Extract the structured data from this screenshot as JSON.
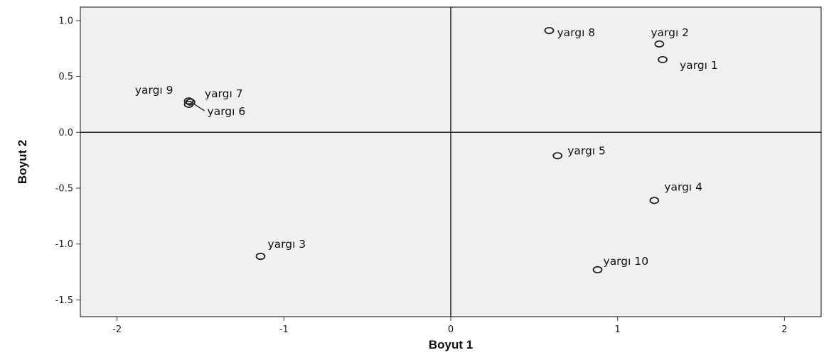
{
  "chart_data": {
    "type": "scatter",
    "xlabel": "Boyut 1",
    "ylabel": "Boyut 2",
    "xlim": [
      -2.22,
      2.22
    ],
    "ylim": [
      -1.65,
      1.12
    ],
    "xticks": [
      -2,
      -1,
      0,
      1,
      2
    ],
    "xtick_labels": [
      "-2",
      "-1",
      "0",
      "1",
      "2"
    ],
    "yticks": [
      1.0,
      0.5,
      0.0,
      -0.5,
      -1.0,
      -1.5
    ],
    "ytick_labels": [
      "1.0",
      "0.5",
      "0.0",
      "-0.5",
      "-1.0",
      "-1.5"
    ],
    "reference_lines": {
      "x": 0,
      "y": 0
    },
    "grid": false,
    "plot_background": "#f0f0f0",
    "marker": "hollow-circle",
    "points": [
      {
        "label": "yargı 1",
        "x": 1.27,
        "y": 0.65
      },
      {
        "label": "yargı 2",
        "x": 1.25,
        "y": 0.79
      },
      {
        "label": "yargı 3",
        "x": -1.14,
        "y": -1.11
      },
      {
        "label": "yargı 4",
        "x": 1.22,
        "y": -0.61
      },
      {
        "label": "yargı 5",
        "x": 0.64,
        "y": -0.21
      },
      {
        "label": "yargı 6",
        "x": -1.57,
        "y": 0.25
      },
      {
        "label": "yargı 7",
        "x": -1.56,
        "y": 0.27
      },
      {
        "label": "yargı 8",
        "x": 0.59,
        "y": 0.91
      },
      {
        "label": "yargı 9",
        "x": -1.57,
        "y": 0.28
      },
      {
        "label": "yargı 10",
        "x": 0.88,
        "y": -1.23
      }
    ]
  }
}
